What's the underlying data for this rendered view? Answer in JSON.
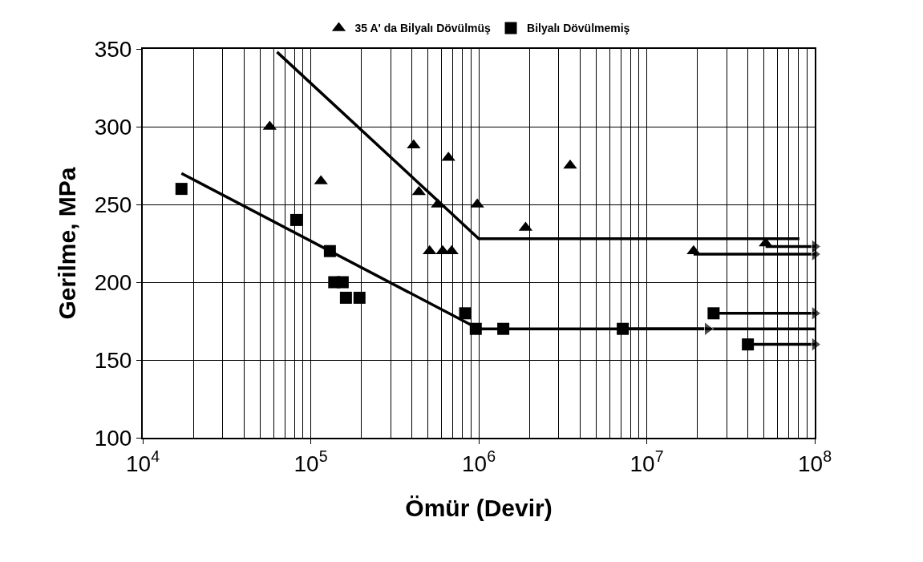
{
  "chart_data": {
    "type": "scatter",
    "xlabel": "Ömür (Devir)",
    "ylabel": "Gerilme, MPa",
    "log": "x",
    "grid": true,
    "legend": "top",
    "xlim": [
      10000,
      100000000
    ],
    "xticks": [
      {
        "value": 10000,
        "label": "10$^{4}$"
      },
      {
        "value": 100000,
        "label": "10$^{5}$"
      },
      {
        "value": 1000000,
        "label": "10$^{6}$"
      },
      {
        "value": 10000000,
        "label": "10$^{7}$"
      },
      {
        "value": 100000000,
        "label": "10$^{8}$"
      }
    ],
    "ylim": [
      100,
      350
    ],
    "yticks": [
      100,
      150,
      200,
      250,
      300,
      350
    ],
    "series": [
      {
        "name": "35 A' da Bilyalı Dövülmüş",
        "color": "#000000",
        "marker": "triangle",
        "x": [
          57000,
          115000,
          410000,
          440000,
          510000,
          570000,
          610000,
          690000,
          660000,
          980000,
          1900000,
          3500000,
          19000000,
          51000000
        ],
        "values": [
          300,
          265,
          288,
          258,
          220,
          250,
          220,
          220,
          280,
          250,
          235,
          275,
          220,
          225
        ]
      },
      {
        "name": "Bilyalı Dövülmemiş",
        "color": "#000000",
        "marker": "square",
        "x": [
          17000,
          82000,
          130000,
          138000,
          155000,
          162000,
          195000,
          830000,
          960000,
          1400000,
          7200000,
          25000000,
          40000000
        ],
        "values": [
          260,
          240,
          220,
          200,
          200,
          190,
          190,
          180,
          170,
          170,
          170,
          180,
          160
        ]
      },
      {
        "type": "line",
        "color": "#000000",
        "marker": "none",
        "x": [
          63000,
          1000000,
          81000000
        ],
        "values": [
          348,
          228,
          228
        ]
      },
      {
        "type": "line",
        "color": "#000000",
        "marker": "none",
        "x": [
          17000,
          1000000,
          100000000
        ],
        "values": [
          270,
          170,
          170
        ]
      },
      {
        "type": "line",
        "color": "#000000",
        "marker": "triangle",
        "x": [
          7200000,
          23000000
        ],
        "values": [
          170,
          170
        ]
      },
      {
        "type": "line",
        "color": "#000000",
        "marker": "triangle",
        "x": [
          25000000,
          100000000
        ],
        "values": [
          180,
          180
        ]
      },
      {
        "type": "line",
        "color": "#000000",
        "marker": "triangle",
        "x": [
          40000000,
          100000000
        ],
        "values": [
          160,
          160
        ]
      },
      {
        "type": "line",
        "color": "#000000",
        "marker": "triangle",
        "x": [
          19000000,
          100000000
        ],
        "values": [
          218,
          218
        ]
      },
      {
        "type": "line",
        "color": "#000000",
        "marker": "triangle",
        "x": [
          51000000,
          100000000
        ],
        "values": [
          223,
          223
        ]
      }
    ]
  }
}
